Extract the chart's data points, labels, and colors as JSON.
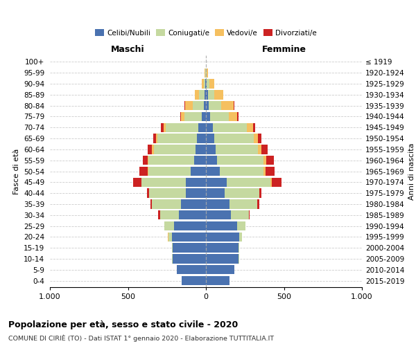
{
  "age_groups": [
    "0-4",
    "5-9",
    "10-14",
    "15-19",
    "20-24",
    "25-29",
    "30-34",
    "35-39",
    "40-44",
    "45-49",
    "50-54",
    "55-59",
    "60-64",
    "65-69",
    "70-74",
    "75-79",
    "80-84",
    "85-89",
    "90-94",
    "95-99",
    "100+"
  ],
  "birth_years": [
    "2015-2019",
    "2010-2014",
    "2005-2009",
    "2000-2004",
    "1995-1999",
    "1990-1994",
    "1985-1989",
    "1980-1984",
    "1975-1979",
    "1970-1974",
    "1965-1969",
    "1960-1964",
    "1955-1959",
    "1950-1954",
    "1945-1949",
    "1940-1944",
    "1935-1939",
    "1930-1934",
    "1925-1929",
    "1920-1924",
    "≤ 1919"
  ],
  "colors": {
    "celibe": "#4a72b0",
    "coniugato": "#c5d9a0",
    "vedovo": "#f5c060",
    "divorziato": "#cc2222"
  },
  "maschi": {
    "celibe": [
      155,
      185,
      215,
      215,
      220,
      205,
      175,
      160,
      130,
      130,
      100,
      75,
      65,
      60,
      50,
      25,
      15,
      8,
      3,
      2,
      0
    ],
    "coniugato": [
      0,
      0,
      2,
      5,
      20,
      60,
      120,
      185,
      235,
      285,
      270,
      295,
      270,
      250,
      210,
      115,
      70,
      35,
      10,
      2,
      0
    ],
    "vedovo": [
      0,
      0,
      0,
      0,
      5,
      0,
      0,
      0,
      0,
      0,
      5,
      5,
      10,
      10,
      10,
      20,
      50,
      30,
      15,
      5,
      0
    ],
    "divorziato": [
      0,
      0,
      0,
      0,
      0,
      0,
      10,
      10,
      15,
      50,
      50,
      30,
      30,
      20,
      20,
      5,
      5,
      0,
      0,
      0,
      0
    ]
  },
  "femmine": {
    "nubile": [
      150,
      180,
      210,
      210,
      215,
      200,
      160,
      150,
      120,
      135,
      90,
      70,
      60,
      55,
      45,
      25,
      18,
      12,
      5,
      2,
      0
    ],
    "coniugata": [
      0,
      0,
      2,
      5,
      18,
      55,
      115,
      180,
      220,
      280,
      280,
      300,
      275,
      250,
      215,
      120,
      80,
      40,
      15,
      3,
      0
    ],
    "vedova": [
      0,
      0,
      0,
      0,
      0,
      0,
      0,
      0,
      0,
      5,
      10,
      15,
      20,
      30,
      40,
      55,
      80,
      60,
      35,
      10,
      2
    ],
    "divorziata": [
      0,
      0,
      0,
      0,
      0,
      0,
      5,
      10,
      15,
      65,
      60,
      50,
      40,
      20,
      15,
      10,
      5,
      0,
      0,
      0,
      0
    ]
  },
  "xlim": 1000,
  "title": "Popolazione per età, sesso e stato civile - 2020",
  "subtitle": "COMUNE DI CIRIÈ (TO) - Dati ISTAT 1° gennaio 2020 - Elaborazione TUTTITALIA.IT",
  "ylabel_left": "Fasce di età",
  "ylabel_right": "Anni di nascita",
  "xlabel_left": "Maschi",
  "xlabel_right": "Femmine"
}
